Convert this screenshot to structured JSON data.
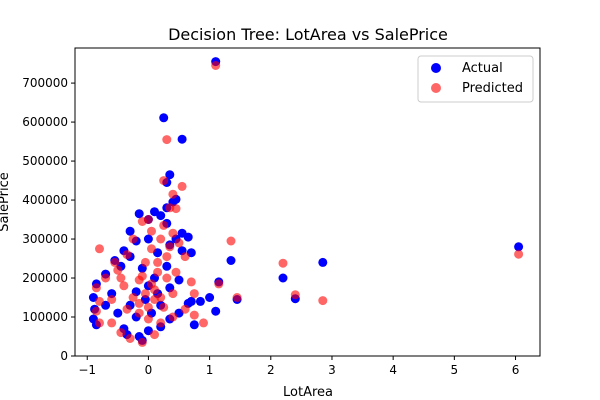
{
  "chart_data": {
    "type": "scatter",
    "title": "Decision Tree: LotArea vs SalePrice",
    "xlabel": "LotArea",
    "ylabel": "SalePrice",
    "xlim": [
      -1.2,
      6.4
    ],
    "ylim": [
      0,
      790000
    ],
    "xticks": [
      -1,
      0,
      1,
      2,
      3,
      4,
      5,
      6
    ],
    "xtick_labels": [
      "−1",
      "0",
      "1",
      "2",
      "3",
      "4",
      "5",
      "6"
    ],
    "yticks": [
      0,
      100000,
      200000,
      300000,
      400000,
      500000,
      600000,
      700000
    ],
    "ytick_labels": [
      "0",
      "100000",
      "200000",
      "300000",
      "400000",
      "500000",
      "600000",
      "700000"
    ],
    "grid": false,
    "legend_position": "top-right",
    "series": [
      {
        "name": "Actual",
        "color": "#0000ff",
        "alpha": 1.0,
        "points": [
          [
            1.1,
            755000
          ],
          [
            0.25,
            611000
          ],
          [
            0.55,
            556000
          ],
          [
            0.35,
            465000
          ],
          [
            0.3,
            445000
          ],
          [
            0.45,
            402000
          ],
          [
            0.4,
            395000
          ],
          [
            0.3,
            380000
          ],
          [
            0.1,
            370000
          ],
          [
            -0.15,
            365000
          ],
          [
            0.2,
            360000
          ],
          [
            0.0,
            350000
          ],
          [
            0.3,
            340000
          ],
          [
            0.55,
            315000
          ],
          [
            -0.3,
            320000
          ],
          [
            0.45,
            300000
          ],
          [
            0.65,
            305000
          ],
          [
            -0.2,
            295000
          ],
          [
            0.35,
            285000
          ],
          [
            0.55,
            270000
          ],
          [
            0.7,
            265000
          ],
          [
            -0.4,
            270000
          ],
          [
            -0.3,
            255000
          ],
          [
            -0.55,
            245000
          ],
          [
            -0.45,
            230000
          ],
          [
            -0.7,
            210000
          ],
          [
            -0.85,
            185000
          ],
          [
            -0.9,
            150000
          ],
          [
            -0.88,
            120000
          ],
          [
            -0.9,
            95000
          ],
          [
            -0.85,
            80000
          ],
          [
            -0.4,
            70000
          ],
          [
            -0.35,
            55000
          ],
          [
            -0.15,
            50000
          ],
          [
            -0.1,
            40000
          ],
          [
            0.0,
            65000
          ],
          [
            0.2,
            75000
          ],
          [
            0.35,
            95000
          ],
          [
            0.5,
            110000
          ],
          [
            0.65,
            135000
          ],
          [
            0.7,
            140000
          ],
          [
            0.75,
            80000
          ],
          [
            0.85,
            140000
          ],
          [
            1.0,
            150000
          ],
          [
            1.1,
            115000
          ],
          [
            1.15,
            190000
          ],
          [
            1.35,
            245000
          ],
          [
            1.45,
            145000
          ],
          [
            2.2,
            200000
          ],
          [
            2.4,
            147000
          ],
          [
            2.85,
            240000
          ],
          [
            6.05,
            280000
          ],
          [
            0.0,
            300000
          ],
          [
            0.15,
            265000
          ],
          [
            -0.1,
            225000
          ],
          [
            0.1,
            200000
          ],
          [
            0.0,
            180000
          ],
          [
            -0.2,
            165000
          ],
          [
            0.15,
            160000
          ],
          [
            -0.05,
            145000
          ],
          [
            0.2,
            130000
          ],
          [
            -0.3,
            130000
          ],
          [
            -0.5,
            110000
          ],
          [
            0.35,
            175000
          ],
          [
            0.5,
            195000
          ],
          [
            -0.6,
            160000
          ],
          [
            -0.7,
            130000
          ],
          [
            0.05,
            110000
          ],
          [
            -0.2,
            100000
          ],
          [
            0.3,
            230000
          ]
        ]
      },
      {
        "name": "Predicted",
        "color": "#ff0000",
        "alpha": 0.6,
        "points": [
          [
            1.1,
            745000
          ],
          [
            0.3,
            555000
          ],
          [
            0.25,
            450000
          ],
          [
            0.55,
            435000
          ],
          [
            0.4,
            415000
          ],
          [
            0.35,
            380000
          ],
          [
            0.45,
            378000
          ],
          [
            0.0,
            350000
          ],
          [
            -0.1,
            345000
          ],
          [
            0.25,
            335000
          ],
          [
            0.05,
            320000
          ],
          [
            0.4,
            315000
          ],
          [
            0.2,
            300000
          ],
          [
            -0.25,
            300000
          ],
          [
            0.5,
            290000
          ],
          [
            0.35,
            280000
          ],
          [
            -0.8,
            275000
          ],
          [
            1.35,
            295000
          ],
          [
            0.6,
            255000
          ],
          [
            0.3,
            255000
          ],
          [
            -0.35,
            260000
          ],
          [
            -0.55,
            240000
          ],
          [
            -0.5,
            220000
          ],
          [
            -0.7,
            200000
          ],
          [
            -0.85,
            175000
          ],
          [
            -0.8,
            140000
          ],
          [
            -0.85,
            115000
          ],
          [
            -0.8,
            85000
          ],
          [
            -0.6,
            85000
          ],
          [
            -0.45,
            60000
          ],
          [
            -0.3,
            45000
          ],
          [
            -0.1,
            35000
          ],
          [
            0.1,
            55000
          ],
          [
            0.2,
            85000
          ],
          [
            0.4,
            100000
          ],
          [
            0.6,
            120000
          ],
          [
            0.75,
            105000
          ],
          [
            0.9,
            85000
          ],
          [
            0.7,
            190000
          ],
          [
            0.75,
            160000
          ],
          [
            1.15,
            185000
          ],
          [
            1.45,
            150000
          ],
          [
            2.2,
            238000
          ],
          [
            2.4,
            157000
          ],
          [
            2.85,
            142000
          ],
          [
            6.05,
            261000
          ],
          [
            0.05,
            275000
          ],
          [
            -0.05,
            240000
          ],
          [
            0.15,
            215000
          ],
          [
            -0.15,
            195000
          ],
          [
            0.05,
            185000
          ],
          [
            0.1,
            170000
          ],
          [
            -0.05,
            160000
          ],
          [
            0.2,
            150000
          ],
          [
            -0.15,
            135000
          ],
          [
            0.0,
            125000
          ],
          [
            0.25,
            125000
          ],
          [
            -0.35,
            120000
          ],
          [
            -0.25,
            150000
          ],
          [
            0.3,
            200000
          ],
          [
            0.45,
            215000
          ],
          [
            -0.4,
            180000
          ],
          [
            -0.6,
            145000
          ],
          [
            0.0,
            95000
          ],
          [
            -0.15,
            110000
          ],
          [
            0.15,
            240000
          ],
          [
            -0.45,
            200000
          ],
          [
            0.4,
            160000
          ],
          [
            -0.1,
            205000
          ],
          [
            0.1,
            145000
          ]
        ]
      }
    ]
  }
}
